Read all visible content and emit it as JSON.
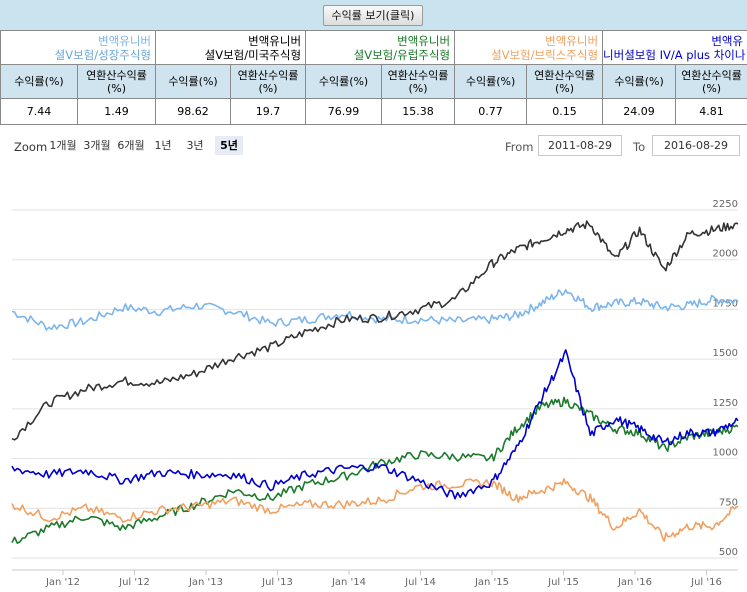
{
  "toggle_label": "수익률 보기(클릭)",
  "funds": [
    {
      "line1": "변액유니버",
      "line2": "셜V보험/성장주식형",
      "color": "#7cb5ec",
      "line2_color": "#6aa6d6",
      "ret": "7.44",
      "ann": "1.49"
    },
    {
      "line1": "변액유니버",
      "line2": "셜V보험/미국주식형",
      "color": "#000000",
      "line2_color": "#000000",
      "ret": "98.62",
      "ann": "19.7"
    },
    {
      "line1": "변액유니버",
      "line2": "셜V보험/유럽주식형",
      "color": "#1a7a2a",
      "line2_color": "#1a7a2a",
      "ret": "76.99",
      "ann": "15.38"
    },
    {
      "line1": "변액유니버",
      "line2": "셜V보험/브릭스주식형",
      "color": "#f0a060",
      "line2_color": "#f0a060",
      "ret": "0.77",
      "ann": "0.15"
    },
    {
      "line1": "변액유",
      "line2": "니버셜보험 IV/A plus 차이나",
      "color": "#0000cc",
      "line2_color": "#0000cc",
      "ret": "24.09",
      "ann": "4.81"
    }
  ],
  "col_ret": "수익률(%)",
  "col_ann_1": "연환산수익률",
  "col_ann_2": "(%)",
  "zoom": {
    "label": "Zoom",
    "buttons": [
      "1개월",
      "3개월",
      "6개월",
      "1년",
      "3년",
      "5년"
    ],
    "active": "5년"
  },
  "range": {
    "from_label": "From",
    "from": "2011-08-29",
    "to_label": "To",
    "to": "2016-08-29"
  },
  "chart_data": {
    "type": "line",
    "x_ticks": [
      "Jan '12",
      "Jul '12",
      "Jan '13",
      "Jul '13",
      "Jan '14",
      "Jul '14",
      "Jan '15",
      "Jul '15",
      "Jan '16",
      "Jul '16"
    ],
    "y_ticks": [
      500,
      750,
      1000,
      1250,
      1500,
      1750,
      2000,
      2250
    ],
    "ylim": [
      500,
      2250
    ],
    "grid": true,
    "x": [
      "2011-09",
      "2011-12",
      "2012-03",
      "2012-06",
      "2012-09",
      "2012-12",
      "2013-03",
      "2013-06",
      "2013-09",
      "2013-12",
      "2014-03",
      "2014-06",
      "2014-09",
      "2014-12",
      "2015-02",
      "2015-04",
      "2015-06",
      "2015-08",
      "2015-10",
      "2015-12",
      "2016-02",
      "2016-04",
      "2016-06",
      "2016-08"
    ],
    "series": [
      {
        "color": "#7cb5ec",
        "values": [
          1740,
          1660,
          1690,
          1760,
          1740,
          1770,
          1740,
          1680,
          1700,
          1730,
          1700,
          1700,
          1690,
          1700,
          1720,
          1780,
          1850,
          1760,
          1780,
          1790,
          1760,
          1770,
          1800,
          1790
        ]
      },
      {
        "color": "#333333",
        "values": [
          1100,
          1280,
          1350,
          1390,
          1380,
          1430,
          1510,
          1560,
          1640,
          1700,
          1710,
          1750,
          1800,
          1980,
          2050,
          2100,
          2150,
          2180,
          2000,
          2150,
          1950,
          2130,
          2150,
          2180
        ]
      },
      {
        "color": "#1a7a2a",
        "values": [
          580,
          650,
          710,
          650,
          710,
          770,
          840,
          800,
          870,
          910,
          980,
          1020,
          1010,
          1000,
          1150,
          1260,
          1290,
          1220,
          1150,
          1130,
          1050,
          1110,
          1130,
          1160
        ]
      },
      {
        "color": "#f0a060",
        "values": [
          770,
          700,
          750,
          700,
          740,
          760,
          790,
          740,
          770,
          770,
          790,
          860,
          870,
          880,
          800,
          840,
          880,
          800,
          650,
          740,
          600,
          660,
          660,
          760
        ]
      },
      {
        "color": "#0000cc",
        "values": [
          950,
          920,
          940,
          890,
          930,
          920,
          920,
          860,
          920,
          950,
          960,
          890,
          810,
          880,
          1050,
          1300,
          1530,
          1120,
          1200,
          1150,
          1080,
          1130,
          1130,
          1190
        ]
      }
    ]
  }
}
